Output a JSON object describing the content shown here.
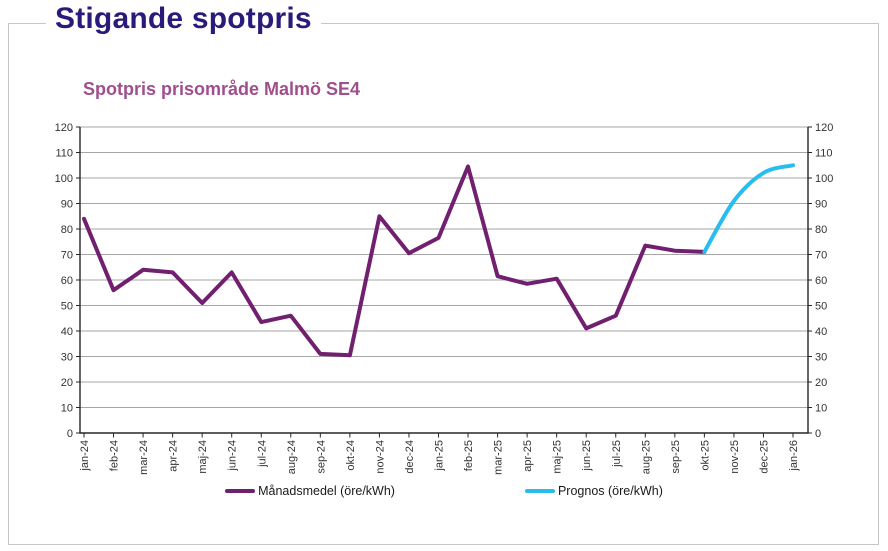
{
  "page": {
    "title": "Stigande spotpris"
  },
  "colors": {
    "page_title": "#2A1B7A",
    "chart_title": "#A04E8C",
    "axis_text": "#333333",
    "gridline": "#A6A6A6",
    "axis_line": "#262626",
    "panel_border": "#C6C6C6",
    "manadsmedel_line": "#71206F",
    "prognos_line": "#29BDEE"
  },
  "chart_data": {
    "type": "line",
    "title": "Spotpris prisområde Malmö SE4",
    "xlabel": "",
    "ylabel": "",
    "ylim": [
      0,
      120
    ],
    "ytick_step": 10,
    "grid": "horizontal",
    "legend_position": "bottom",
    "y_axis_sides": [
      "left",
      "right"
    ],
    "x_label_rotation": -90,
    "categories": [
      "jan-24",
      "feb-24",
      "mar-24",
      "apr-24",
      "maj-24",
      "jun-24",
      "jul-24",
      "aug-24",
      "sep-24",
      "okt-24",
      "nov-24",
      "dec-24",
      "jan-25",
      "feb-25",
      "mar-25",
      "apr-25",
      "maj-25",
      "jun-25",
      "jul-25",
      "aug-25",
      "sep-25",
      "okt-25",
      "nov-25",
      "dec-25",
      "jan-26"
    ],
    "series": [
      {
        "name": "Månadsmedel (öre/kWh)",
        "color": "#71206F",
        "start_index": 0,
        "smooth": false,
        "values": [
          84,
          56,
          64,
          63,
          51,
          63,
          43.5,
          46,
          31,
          30.5,
          85,
          70.5,
          76.5,
          104.5,
          61.5,
          58.5,
          60.5,
          41,
          46,
          73.5,
          71.5,
          71
        ]
      },
      {
        "name": "Prognos (öre/kWh)",
        "color": "#29BDEE",
        "start_index": 21,
        "smooth": true,
        "values": [
          71,
          91,
          102,
          105
        ]
      }
    ]
  }
}
